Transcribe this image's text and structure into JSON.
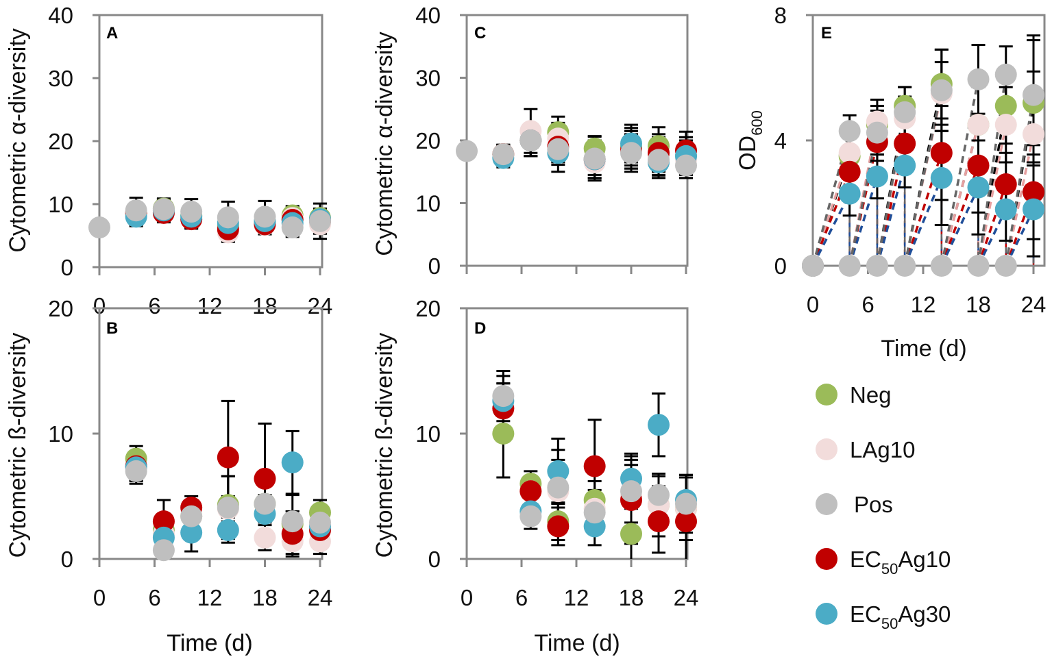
{
  "colors": {
    "Neg": "#9BBB59",
    "LAg10": "#F2DCDB",
    "Pos": "#BFBFBF",
    "EC50Ag10": "#C00000",
    "EC50Ag30": "#4BACC6"
  },
  "legend": [
    {
      "key": "Neg",
      "label": "Neg"
    },
    {
      "key": "LAg10",
      "label": "LAg10"
    },
    {
      "key": "Pos",
      "label": "Pos"
    },
    {
      "key": "EC50Ag10",
      "label_pre": "EC",
      "label_sub": "50",
      "label_post": "Ag10"
    },
    {
      "key": "EC50Ag30",
      "label_pre": "EC",
      "label_sub": "50",
      "label_post": "Ag30"
    }
  ],
  "chart_data": [
    {
      "panel": "A",
      "type": "scatter",
      "xlabel": "Time (d)",
      "ylabel": "Cytometric α-diversity",
      "xlim": [
        0,
        24
      ],
      "ylim": [
        0,
        40
      ],
      "xticks": [
        "0",
        "6",
        "12",
        "18",
        "24"
      ],
      "yticks": [
        "0",
        "10",
        "20",
        "30",
        "40"
      ],
      "x": [
        0,
        4,
        7,
        10,
        14,
        18,
        21,
        24
      ],
      "series": [
        {
          "name": "Neg",
          "values": [
            null,
            8.6,
            9.3,
            8.2,
            6.6,
            7.2,
            8.2,
            7.8
          ],
          "err": [
            0,
            1.5,
            1.5,
            1.5,
            1.5,
            1.5,
            1.5,
            1.5
          ]
        },
        {
          "name": "LAg10",
          "values": [
            null,
            8.6,
            9.0,
            7.8,
            5.5,
            6.7,
            7.8,
            6.8
          ],
          "err": [
            0,
            1.5,
            1.5,
            1.5,
            1.5,
            1.5,
            1.5,
            1.5
          ]
        },
        {
          "name": "EC50Ag10",
          "values": [
            null,
            8.6,
            8.6,
            7.6,
            6.0,
            6.8,
            7.5,
            7.4
          ],
          "err": [
            0,
            1.5,
            1.5,
            1.5,
            1.5,
            1.5,
            1.5,
            1.5
          ]
        },
        {
          "name": "EC50Ag30",
          "values": [
            null,
            8.0,
            9.0,
            8.0,
            7.0,
            7.3,
            7.0,
            7.6
          ],
          "err": [
            0,
            1.5,
            1.5,
            1.5,
            1.5,
            1.5,
            1.5,
            1.5
          ]
        },
        {
          "name": "Pos",
          "values": [
            6.3,
            9.0,
            9.2,
            8.8,
            7.9,
            8.0,
            6.3,
            7.3
          ],
          "err": [
            0,
            2.0,
            1.7,
            2.0,
            2.5,
            2.5,
            1.5,
            2.8
          ]
        }
      ]
    },
    {
      "panel": "B",
      "type": "scatter",
      "xlabel": "Time (d)",
      "ylabel": "Cytometric ß-diversity",
      "xlim": [
        0,
        24
      ],
      "ylim": [
        0,
        20
      ],
      "xticks": [
        "0",
        "6",
        "12",
        "18",
        "24"
      ],
      "yticks": [
        "0",
        "10",
        "20"
      ],
      "x": [
        0,
        4,
        7,
        10,
        14,
        18,
        21,
        24
      ],
      "series": [
        {
          "name": "Neg",
          "values": [
            null,
            8.0,
            2.3,
            3.4,
            4.3,
            4.4,
            2.8,
            3.7
          ],
          "err": [
            0,
            1.0,
            1.0,
            1.0,
            2.3,
            1.5,
            1.0,
            1.0
          ]
        },
        {
          "name": "LAg10",
          "values": [
            null,
            7.2,
            2.0,
            3.4,
            4.0,
            1.7,
            1.4,
            1.4
          ],
          "err": [
            0,
            1.0,
            1.0,
            1.0,
            1.0,
            1.0,
            1.0,
            1.0
          ]
        },
        {
          "name": "EC50Ag10",
          "values": [
            null,
            7.4,
            3.0,
            4.1,
            8.1,
            6.4,
            2.0,
            2.3
          ],
          "err": [
            0,
            1.0,
            1.7,
            0.9,
            4.5,
            4.4,
            1.8,
            1.5
          ]
        },
        {
          "name": "EC50Ag30",
          "values": [
            null,
            7.3,
            1.7,
            2.1,
            2.3,
            3.6,
            7.7,
            2.6
          ],
          "err": [
            0,
            1.0,
            1.0,
            1.5,
            1.0,
            1.5,
            2.5,
            1.5
          ]
        },
        {
          "name": "Pos",
          "values": [
            null,
            7.0,
            0.7,
            3.4,
            4.1,
            4.4,
            3.0,
            2.9
          ],
          "err": [
            0,
            1.0,
            1.0,
            1.2,
            2.5,
            1.5,
            2.1,
            1.8
          ]
        }
      ]
    },
    {
      "panel": "C",
      "type": "scatter",
      "xlabel": "",
      "ylabel": "Cytometric α-diversity",
      "xlim": [
        0,
        24
      ],
      "ylim": [
        0,
        40
      ],
      "xticks": [],
      "yticks": [
        "0",
        "10",
        "20",
        "30",
        "40"
      ],
      "x": [
        0,
        4,
        7,
        10,
        14,
        18,
        21,
        24
      ],
      "series": [
        {
          "name": "Neg",
          "values": [
            null,
            17.8,
            20.0,
            21.3,
            18.7,
            19.0,
            19.1,
            17.5
          ],
          "err": [
            0,
            1.5,
            2.5,
            2.5,
            2.0,
            3.0,
            3.0,
            3.0
          ]
        },
        {
          "name": "LAg10",
          "values": [
            null,
            17.8,
            21.5,
            20.3,
            16.5,
            18.5,
            17.5,
            17.0
          ],
          "err": [
            0,
            1.5,
            3.5,
            2.5,
            2.5,
            3.0,
            3.0,
            3.0
          ]
        },
        {
          "name": "EC50Ag10",
          "values": [
            null,
            17.8,
            20.0,
            19.0,
            17.0,
            18.5,
            18.0,
            18.4
          ],
          "err": [
            0,
            1.5,
            2.5,
            2.5,
            2.5,
            3.0,
            3.0,
            3.0
          ]
        },
        {
          "name": "EC50Ag30",
          "values": [
            null,
            17.2,
            20.0,
            18.0,
            17.0,
            19.5,
            16.5,
            17.5
          ],
          "err": [
            0,
            1.5,
            2.5,
            3.0,
            3.0,
            3.0,
            2.5,
            3.0
          ]
        },
        {
          "name": "Pos",
          "values": [
            18.3,
            17.8,
            20.0,
            18.6,
            17.1,
            18.0,
            16.9,
            16.0
          ],
          "err": [
            0,
            1.5,
            2.5,
            2.5,
            3.5,
            3.0,
            2.5,
            2.0
          ]
        }
      ]
    },
    {
      "panel": "D",
      "type": "scatter",
      "xlabel": "Time (d)",
      "ylabel": "Cytometric ß-diversity",
      "xlim": [
        0,
        24
      ],
      "ylim": [
        0,
        20
      ],
      "xticks": [
        "0",
        "6",
        "12",
        "18",
        "24"
      ],
      "yticks": [
        "0",
        "10",
        "20"
      ],
      "x": [
        0,
        4,
        7,
        10,
        14,
        18,
        21,
        24
      ],
      "series": [
        {
          "name": "Neg",
          "values": [
            null,
            10.0,
            6.0,
            3.0,
            4.7,
            2.0,
            4.3,
            4.0
          ],
          "err": [
            0,
            3.5,
            1.0,
            1.5,
            1.5,
            2.0,
            1.5,
            2.5
          ]
        },
        {
          "name": "LAg10",
          "values": [
            null,
            12.0,
            5.4,
            5.4,
            4.0,
            5.0,
            4.3,
            4.0
          ],
          "err": [
            0,
            2.0,
            1.0,
            2.5,
            1.5,
            2.5,
            2.5,
            2.5
          ]
        },
        {
          "name": "EC50Ag10",
          "values": [
            null,
            12.0,
            5.4,
            2.6,
            7.4,
            4.7,
            3.0,
            3.0
          ],
          "err": [
            0,
            2.0,
            1.0,
            1.5,
            3.7,
            3.5,
            2.5,
            3.7
          ]
        },
        {
          "name": "EC50Ag30",
          "values": [
            null,
            12.6,
            3.8,
            7.0,
            2.6,
            6.4,
            10.7,
            4.7
          ],
          "err": [
            0,
            2.0,
            1.0,
            2.6,
            1.5,
            2.0,
            2.5,
            2.0
          ]
        },
        {
          "name": "Pos",
          "values": [
            null,
            13.0,
            3.4,
            5.7,
            3.7,
            5.4,
            5.1,
            4.4
          ],
          "err": [
            0,
            2.0,
            1.0,
            3.0,
            1.5,
            2.5,
            1.5,
            2.3
          ]
        }
      ]
    },
    {
      "panel": "E",
      "type": "scatter",
      "xlabel": "Time (d)",
      "ylabel_pre": "OD",
      "ylabel_sub": "600",
      "xlim": [
        0,
        24
      ],
      "ylim": [
        0,
        8
      ],
      "xticks": [
        "0",
        "6",
        "12",
        "18",
        "24"
      ],
      "yticks": [
        "0",
        "4",
        "8"
      ],
      "x": [
        0,
        4,
        7,
        10,
        14,
        18,
        21,
        24
      ],
      "baseline_after_transfer": 0,
      "series": [
        {
          "name": "Neg",
          "values": [
            0,
            3.5,
            4.5,
            5.1,
            5.8,
            4.5,
            5.1,
            5.2
          ],
          "err": [
            0,
            0.6,
            0.6,
            0.6,
            1.1,
            1.2,
            1.2,
            2.0
          ]
        },
        {
          "name": "LAg10",
          "values": [
            0,
            3.6,
            4.6,
            4.7,
            5.5,
            4.5,
            4.5,
            4.2
          ],
          "err": [
            0,
            0.6,
            0.7,
            0.7,
            1.0,
            1.3,
            1.2,
            2.0
          ]
        },
        {
          "name": "EC50Ag10",
          "values": [
            0,
            3.0,
            3.95,
            3.9,
            3.6,
            3.2,
            2.6,
            2.35
          ],
          "err": [
            0,
            0.6,
            0.6,
            0.7,
            1.5,
            1.5,
            1.0,
            1.5
          ]
        },
        {
          "name": "EC50Ag30",
          "values": [
            0,
            2.3,
            2.85,
            3.2,
            2.8,
            2.5,
            1.8,
            1.8
          ],
          "err": [
            0,
            0.7,
            0.7,
            0.7,
            1.5,
            1.5,
            1.0,
            1.5
          ]
        },
        {
          "name": "Pos",
          "values": [
            0,
            4.3,
            4.25,
            4.9,
            5.6,
            5.95,
            6.1,
            5.45
          ],
          "err": [
            0,
            0.5,
            0.7,
            0.8,
            1.3,
            1.1,
            0.9,
            1.9
          ]
        }
      ]
    }
  ]
}
